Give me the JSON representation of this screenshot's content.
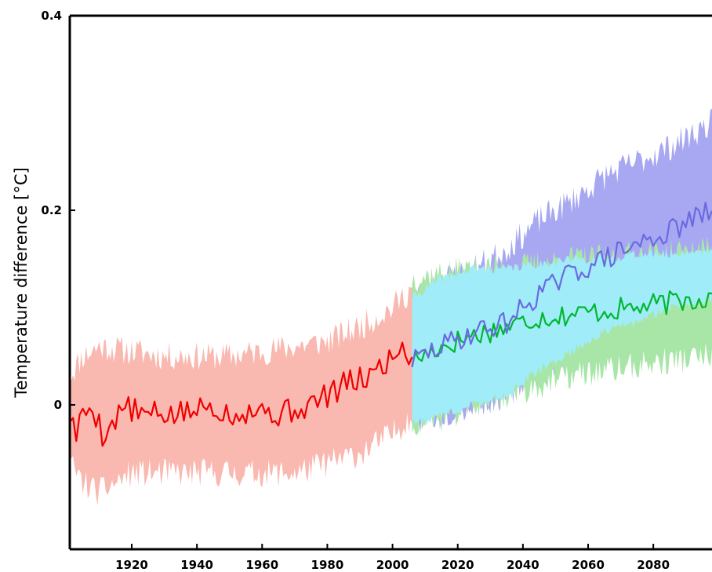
{
  "chart_data": {
    "type": "line",
    "title": "",
    "xlabel": "",
    "ylabel": "Temperature  difference  [°C]",
    "xlim": [
      1901,
      2098
    ],
    "ylim": [
      -0.15,
      0.4
    ],
    "grid": false,
    "legend": "none",
    "x_ticks": [
      1920,
      1940,
      1960,
      1980,
      2000,
      2020,
      2040,
      2060,
      2080
    ],
    "x_tick_labels": [
      "1920",
      "1940",
      "1960",
      "1980",
      "2000",
      "2020",
      "2040",
      "2060",
      "2080"
    ],
    "y_ticks": [
      0,
      0.2,
      0.4
    ],
    "y_tick_labels": [
      "0",
      "0.2",
      "0.4"
    ],
    "colors": {
      "historical_band": "#f9b8b0",
      "historical_line": "#f00000",
      "scenario_a_band": "#a8a8f2",
      "scenario_a_line": "#6a6ae0",
      "scenario_b_band": "#a8e6a8",
      "scenario_b_line": "#00b82e",
      "overlap_band": "#a0ecf8"
    },
    "series": [
      {
        "key": "historical",
        "x_start": 1901,
        "x_end": 2006,
        "mean_anchors": [
          [
            1901,
            -0.01
          ],
          [
            1903,
            -0.03
          ],
          [
            1905,
            -0.01
          ],
          [
            1908,
            0.0
          ],
          [
            1911,
            -0.03
          ],
          [
            1914,
            -0.02
          ],
          [
            1918,
            0.0
          ],
          [
            1922,
            -0.01
          ],
          [
            1926,
            -0.01
          ],
          [
            1930,
            -0.01
          ],
          [
            1935,
            -0.01
          ],
          [
            1940,
            -0.005
          ],
          [
            1945,
            0.0
          ],
          [
            1950,
            -0.01
          ],
          [
            1955,
            -0.005
          ],
          [
            1960,
            -0.005
          ],
          [
            1965,
            -0.01
          ],
          [
            1970,
            -0.005
          ],
          [
            1975,
            0.0
          ],
          [
            1980,
            0.01
          ],
          [
            1985,
            0.02
          ],
          [
            1990,
            0.025
          ],
          [
            1995,
            0.035
          ],
          [
            2000,
            0.05
          ],
          [
            2003,
            0.06
          ],
          [
            2006,
            0.048
          ]
        ],
        "upper_anchors": [
          [
            1901,
            0.03
          ],
          [
            1905,
            0.05
          ],
          [
            1910,
            0.06
          ],
          [
            1920,
            0.055
          ],
          [
            1930,
            0.05
          ],
          [
            1940,
            0.05
          ],
          [
            1950,
            0.05
          ],
          [
            1960,
            0.055
          ],
          [
            1970,
            0.06
          ],
          [
            1980,
            0.065
          ],
          [
            1990,
            0.08
          ],
          [
            2000,
            0.1
          ],
          [
            2006,
            0.12
          ]
        ],
        "lower_anchors": [
          [
            1901,
            -0.06
          ],
          [
            1905,
            -0.08
          ],
          [
            1910,
            -0.09
          ],
          [
            1920,
            -0.07
          ],
          [
            1930,
            -0.07
          ],
          [
            1940,
            -0.07
          ],
          [
            1950,
            -0.07
          ],
          [
            1960,
            -0.07
          ],
          [
            1970,
            -0.07
          ],
          [
            1980,
            -0.06
          ],
          [
            1990,
            -0.05
          ],
          [
            2000,
            -0.03
          ],
          [
            2006,
            -0.01
          ]
        ]
      },
      {
        "key": "scenario_a",
        "x_start": 2006,
        "x_end": 2098,
        "mean_anchors": [
          [
            2006,
            0.045
          ],
          [
            2015,
            0.06
          ],
          [
            2025,
            0.075
          ],
          [
            2035,
            0.085
          ],
          [
            2045,
            0.115
          ],
          [
            2055,
            0.135
          ],
          [
            2065,
            0.15
          ],
          [
            2075,
            0.165
          ],
          [
            2085,
            0.178
          ],
          [
            2092,
            0.19
          ],
          [
            2098,
            0.2
          ]
        ],
        "upper_anchors": [
          [
            2006,
            0.11
          ],
          [
            2015,
            0.13
          ],
          [
            2025,
            0.14
          ],
          [
            2035,
            0.16
          ],
          [
            2045,
            0.19
          ],
          [
            2055,
            0.21
          ],
          [
            2065,
            0.235
          ],
          [
            2075,
            0.25
          ],
          [
            2085,
            0.265
          ],
          [
            2098,
            0.29
          ]
        ],
        "lower_anchors": [
          [
            2006,
            -0.02
          ],
          [
            2015,
            -0.01
          ],
          [
            2025,
            0.0
          ],
          [
            2035,
            0.01
          ],
          [
            2045,
            0.035
          ],
          [
            2055,
            0.055
          ],
          [
            2065,
            0.075
          ],
          [
            2075,
            0.085
          ],
          [
            2085,
            0.1
          ],
          [
            2098,
            0.11
          ]
        ]
      },
      {
        "key": "scenario_b",
        "x_start": 2006,
        "x_end": 2098,
        "mean_anchors": [
          [
            2006,
            0.045
          ],
          [
            2015,
            0.06
          ],
          [
            2025,
            0.072
          ],
          [
            2035,
            0.08
          ],
          [
            2045,
            0.09
          ],
          [
            2055,
            0.093
          ],
          [
            2065,
            0.097
          ],
          [
            2075,
            0.1
          ],
          [
            2085,
            0.105
          ],
          [
            2092,
            0.108
          ],
          [
            2098,
            0.112
          ]
        ],
        "upper_anchors": [
          [
            2006,
            0.13
          ],
          [
            2015,
            0.135
          ],
          [
            2025,
            0.14
          ],
          [
            2035,
            0.14
          ],
          [
            2045,
            0.145
          ],
          [
            2055,
            0.15
          ],
          [
            2065,
            0.15
          ],
          [
            2075,
            0.155
          ],
          [
            2085,
            0.155
          ],
          [
            2098,
            0.16
          ]
        ],
        "lower_anchors": [
          [
            2006,
            -0.02
          ],
          [
            2015,
            -0.015
          ],
          [
            2025,
            0.0
          ],
          [
            2035,
            0.01
          ],
          [
            2045,
            0.02
          ],
          [
            2055,
            0.03
          ],
          [
            2065,
            0.035
          ],
          [
            2075,
            0.04
          ],
          [
            2085,
            0.045
          ],
          [
            2098,
            0.05
          ]
        ]
      }
    ]
  }
}
